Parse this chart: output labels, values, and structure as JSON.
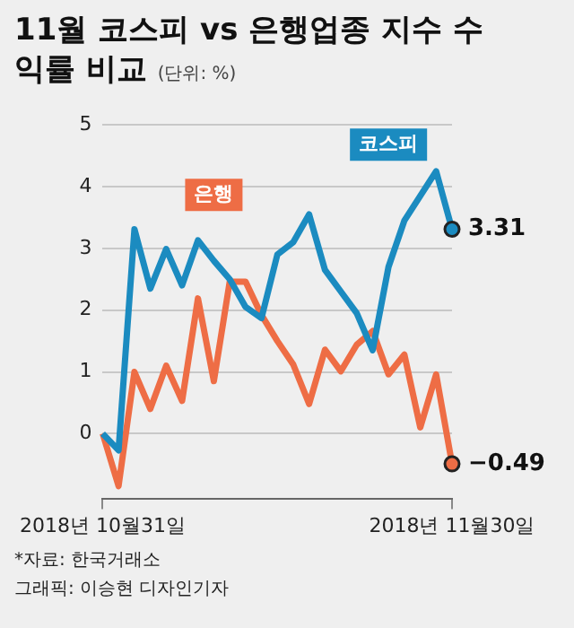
{
  "chart_data": {
    "type": "line",
    "title": "11월 코스피 vs 은행업종 지수 수익률 비교",
    "subtitle": "(단위: %)",
    "categories": [
      "2018년 10월31일",
      null,
      null,
      null,
      null,
      null,
      null,
      null,
      null,
      null,
      null,
      null,
      null,
      null,
      null,
      null,
      null,
      null,
      null,
      null,
      null,
      null,
      "2018년 11월30일"
    ],
    "series": [
      {
        "name": "코스피",
        "color": "#1b8bc0",
        "values": [
          0,
          -0.27,
          3.31,
          2.35,
          2.99,
          2.4,
          3.13,
          2.8,
          2.5,
          2.05,
          1.87,
          2.9,
          3.1,
          3.55,
          2.65,
          2.3,
          1.95,
          1.35,
          2.7,
          3.45,
          3.85,
          4.25,
          3.31
        ],
        "value_labels": [
          null,
          null,
          null,
          null,
          null,
          null,
          null,
          null,
          null,
          null,
          null,
          null,
          null,
          null,
          null,
          null,
          null,
          null,
          null,
          null,
          null,
          null,
          "3.31"
        ]
      },
      {
        "name": "은행",
        "color": "#ee6d45",
        "values": [
          0,
          -0.85,
          1.0,
          0.4,
          1.1,
          0.53,
          2.19,
          0.85,
          2.46,
          2.46,
          1.92,
          1.5,
          1.12,
          0.48,
          1.36,
          1.01,
          1.44,
          1.66,
          0.96,
          1.28,
          0.1,
          0.96,
          -0.49
        ],
        "value_labels": [
          null,
          null,
          null,
          null,
          null,
          null,
          null,
          null,
          null,
          null,
          null,
          null,
          null,
          null,
          null,
          null,
          null,
          null,
          null,
          null,
          null,
          null,
          "−0.49"
        ]
      }
    ],
    "ylim": [
      -1.05,
      5
    ],
    "yticks": [
      0,
      1,
      2,
      3,
      4,
      5
    ],
    "grid": "y",
    "marker": "none",
    "annotations": [
      "*자료: 한국거래소",
      "그래픽: 이승현 디자인기자"
    ]
  }
}
